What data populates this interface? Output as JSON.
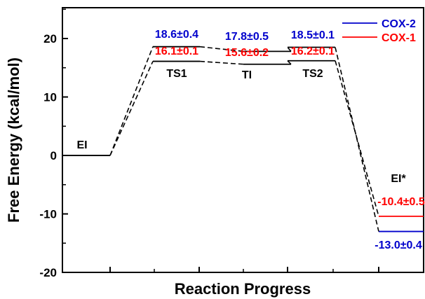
{
  "chart_data": {
    "type": "line",
    "title": "",
    "xlabel": "Reaction Progress",
    "ylabel": "Free Energy (kcal/mol)",
    "ylim": [
      -20,
      25
    ],
    "yticks": [
      "-20",
      "-10",
      "0",
      "10",
      "20"
    ],
    "xticks_count": 4,
    "grid": false,
    "legend": {
      "placement": "top-right",
      "entries": [
        {
          "name": "COX-2",
          "color": "#0000cc"
        },
        {
          "name": "COX-1",
          "color": "#ff0000"
        }
      ]
    },
    "states": [
      {
        "name": "EI",
        "label": "EI"
      },
      {
        "name": "TS1",
        "label": "TS1"
      },
      {
        "name": "TI",
        "label": "TI"
      },
      {
        "name": "TS2",
        "label": "TS2"
      },
      {
        "name": "EI*",
        "label": "EI*"
      }
    ],
    "series": [
      {
        "name": "COX-2",
        "color": "#0000cc",
        "values": [
          0,
          18.6,
          17.8,
          18.5,
          -13.0
        ],
        "value_labels": [
          "",
          "18.6±0.4",
          "17.8±0.5",
          "18.5±0.1",
          "-13.0±0.4"
        ]
      },
      {
        "name": "COX-1",
        "color": "#ff0000",
        "values": [
          0,
          16.1,
          15.6,
          16.2,
          -10.4
        ],
        "value_labels": [
          "",
          "16.1±0.1",
          "15.6±0.2",
          "16.2±0.1",
          "-10.4±0.5"
        ]
      }
    ]
  }
}
